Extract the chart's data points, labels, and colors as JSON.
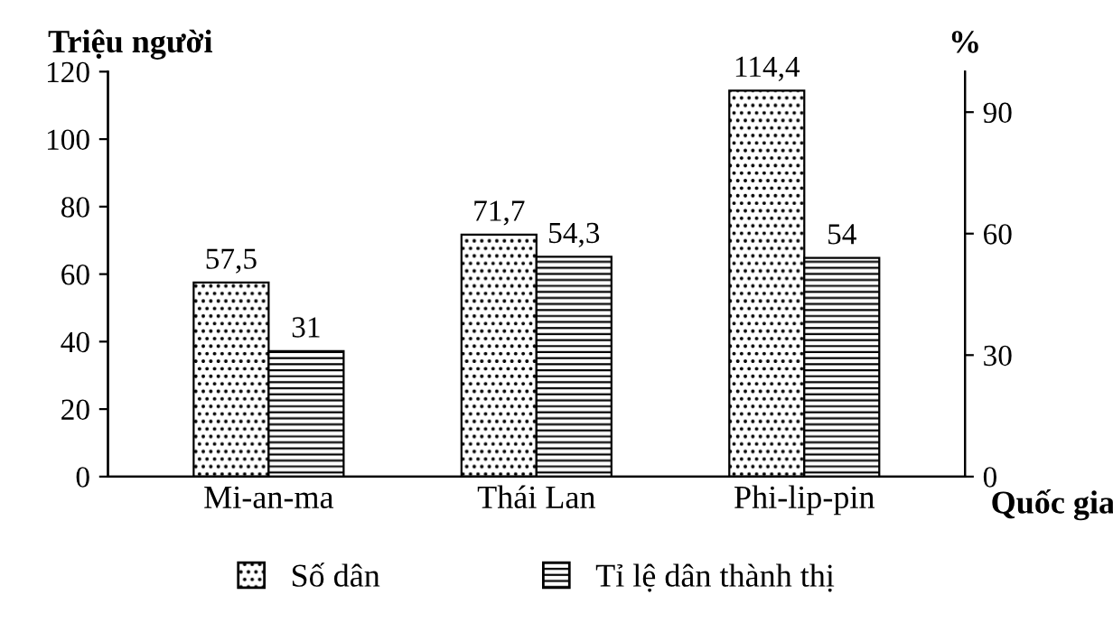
{
  "chart_data": {
    "type": "bar",
    "categories": [
      "Mi-an-ma",
      "Thái Lan",
      "Phi-lip-pin"
    ],
    "series": [
      {
        "name": "Số dân",
        "color": "#000000",
        "values": [
          57.5,
          71.7,
          114.4
        ],
        "value_labels": [
          "57,5",
          "71,7",
          "114,4"
        ]
      },
      {
        "name": "Tỉ lệ dân thành thị",
        "color": "#000000",
        "axis": "y2",
        "values": [
          31,
          54.3,
          54
        ],
        "value_labels": [
          "31",
          "54,3",
          "54"
        ]
      }
    ],
    "xlabel": "Quốc gia",
    "ylabel": "Triệu người",
    "y2label": "%",
    "ylim": [
      0,
      120
    ],
    "yticks": [
      0,
      20,
      40,
      60,
      80,
      100,
      120
    ],
    "y2lim": [
      0,
      100
    ],
    "y2ticks": [
      0,
      30,
      60,
      90
    ],
    "legend": "bottom",
    "grid": false
  }
}
